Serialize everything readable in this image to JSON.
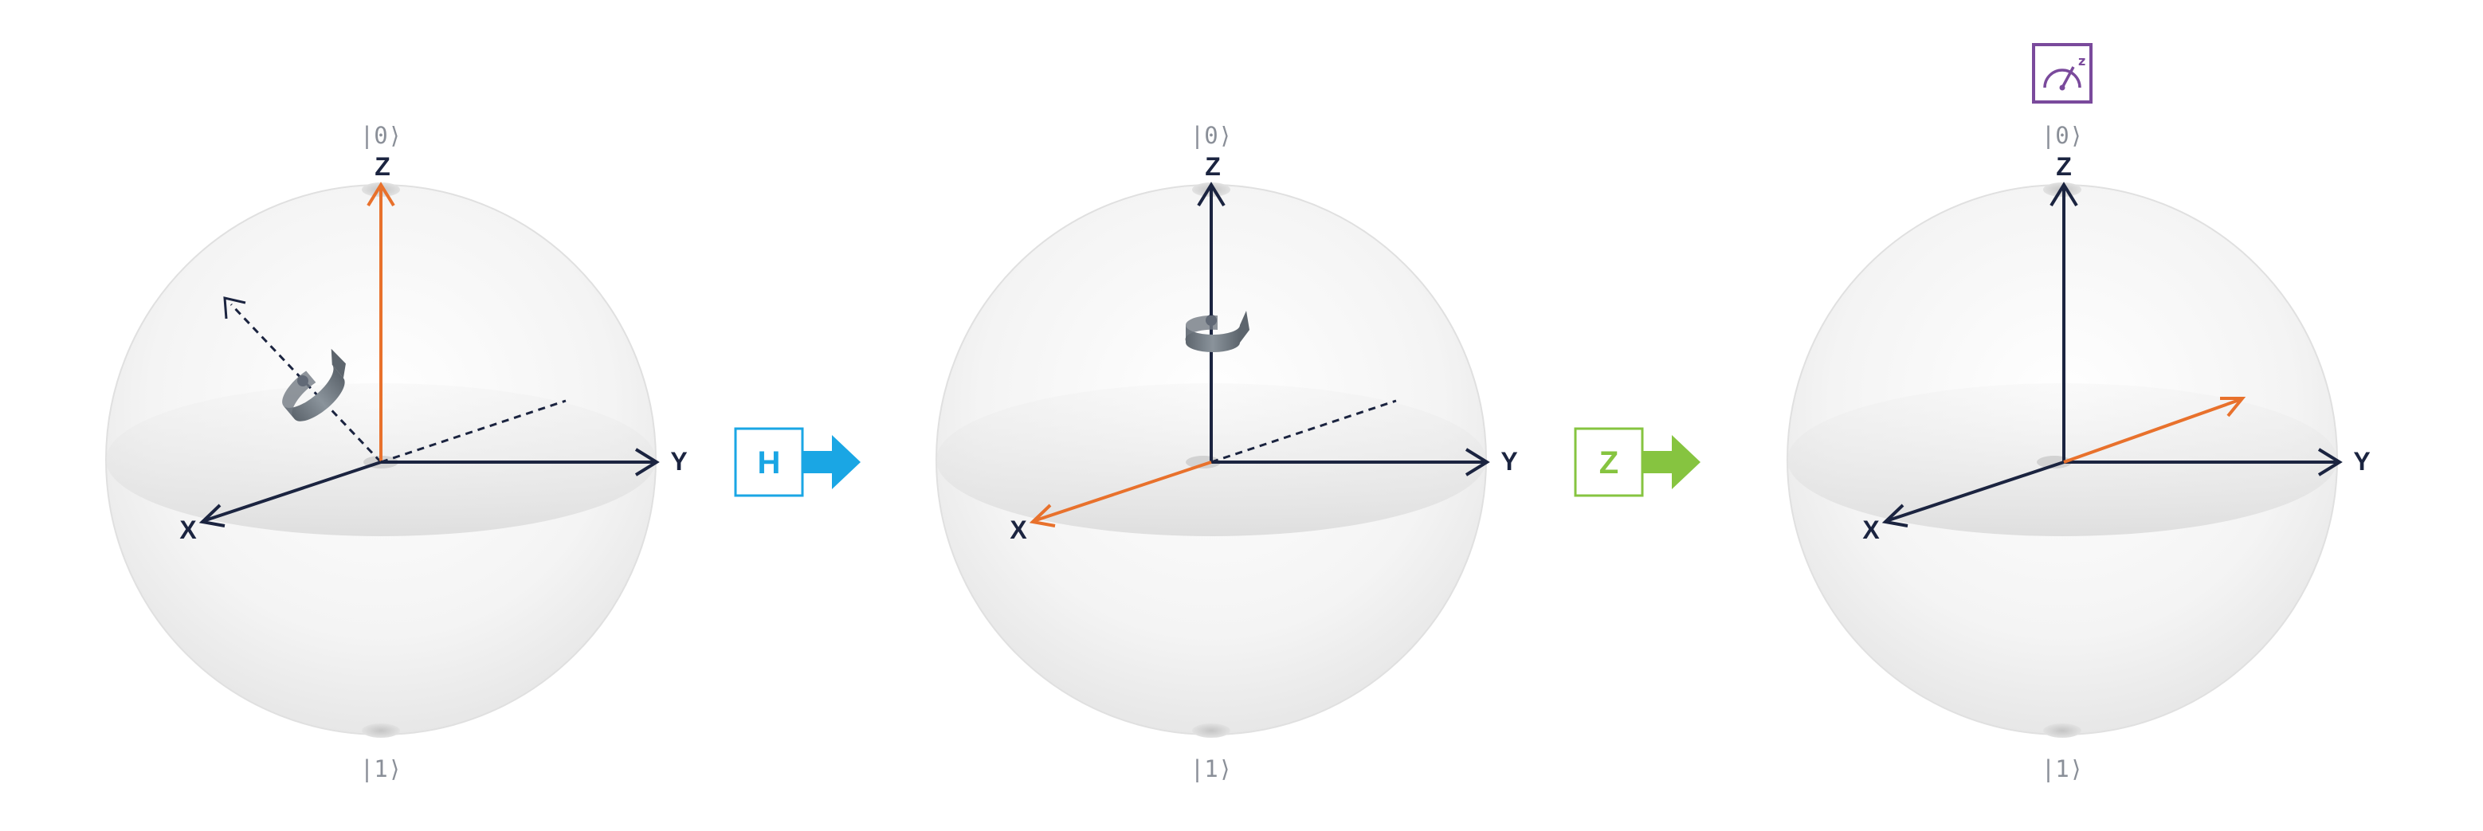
{
  "colors": {
    "axis": "#1b2440",
    "state_vector": "#e8712c",
    "rotation_icon": "#6f7780",
    "sphere_fill": "#f2f2f2",
    "h_gate": "#1aa6e4",
    "z_gate": "#86c440",
    "measure": "#7a4a9c",
    "ket_text": "#8a8f98"
  },
  "spheres": [
    {
      "name": "initial-state",
      "ket_top": "|0⟩",
      "ket_bottom": "|1⟩",
      "axes": {
        "z": "Z",
        "y": "Y",
        "x": "X"
      },
      "state_vector": "z",
      "rotation_axis": "diagonal-xz"
    },
    {
      "name": "after-h",
      "ket_top": "|0⟩",
      "ket_bottom": "|1⟩",
      "axes": {
        "z": "Z",
        "y": "Y",
        "x": "X"
      },
      "state_vector": "x",
      "rotation_axis": "z"
    },
    {
      "name": "after-z",
      "ket_top": "|0⟩",
      "ket_bottom": "|1⟩",
      "axes": {
        "z": "Z",
        "y": "Y",
        "x": "X"
      },
      "state_vector": "minus-x",
      "rotation_axis": "none",
      "measure_icon": "measure-z-icon",
      "measure_label": "z"
    }
  ],
  "gates": [
    {
      "name": "hadamard-gate",
      "label": "H",
      "icon": "right-arrow-icon"
    },
    {
      "name": "z-gate",
      "label": "Z",
      "icon": "right-arrow-icon"
    }
  ]
}
